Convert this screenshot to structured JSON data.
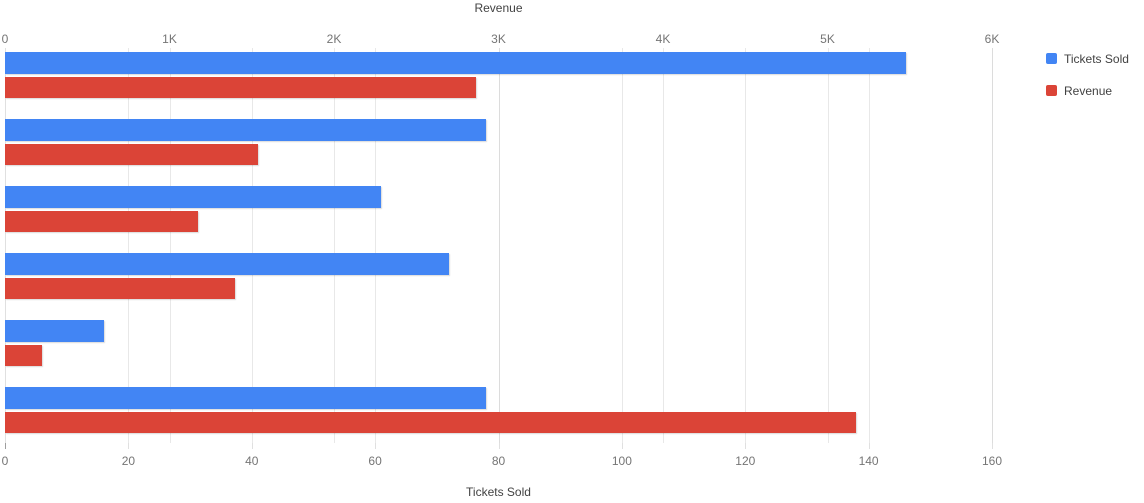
{
  "chart_data": {
    "type": "bar",
    "orientation": "horizontal",
    "grid": true,
    "legend_position": "top-right",
    "categories": [
      "",
      "",
      "",
      "",
      "",
      ""
    ],
    "series": [
      {
        "name": "Tickets Sold",
        "color": "#4285f4",
        "axis": "bottom",
        "values": [
          146,
          78,
          61,
          72,
          16,
          78
        ]
      },
      {
        "name": "Revenue",
        "color": "#db4437",
        "axis": "top",
        "values": [
          2865,
          1535,
          1170,
          1395,
          225,
          5172
        ]
      }
    ],
    "axes": {
      "top": {
        "title": "Revenue",
        "min": 0,
        "max": 6000,
        "ticks": [
          {
            "v": 0,
            "label": "0"
          },
          {
            "v": 1000,
            "label": "1K"
          },
          {
            "v": 2000,
            "label": "2K"
          },
          {
            "v": 3000,
            "label": "3K"
          },
          {
            "v": 4000,
            "label": "4K"
          },
          {
            "v": 5000,
            "label": "5K"
          },
          {
            "v": 6000,
            "label": "6K"
          }
        ]
      },
      "bottom": {
        "title": "Tickets Sold",
        "min": 0,
        "max": 160,
        "ticks": [
          {
            "v": 0,
            "label": "0"
          },
          {
            "v": 20,
            "label": "20"
          },
          {
            "v": 40,
            "label": "40"
          },
          {
            "v": 60,
            "label": "60"
          },
          {
            "v": 80,
            "label": "80"
          },
          {
            "v": 100,
            "label": "100"
          },
          {
            "v": 120,
            "label": "120"
          },
          {
            "v": 140,
            "label": "140"
          },
          {
            "v": 160,
            "label": "160"
          }
        ]
      }
    },
    "colors": {
      "tickets_sold": "#4285f4",
      "revenue": "#db4437",
      "tick_text": "#757575",
      "title_text": "#424242",
      "gridline": "#e8e8e8"
    }
  }
}
